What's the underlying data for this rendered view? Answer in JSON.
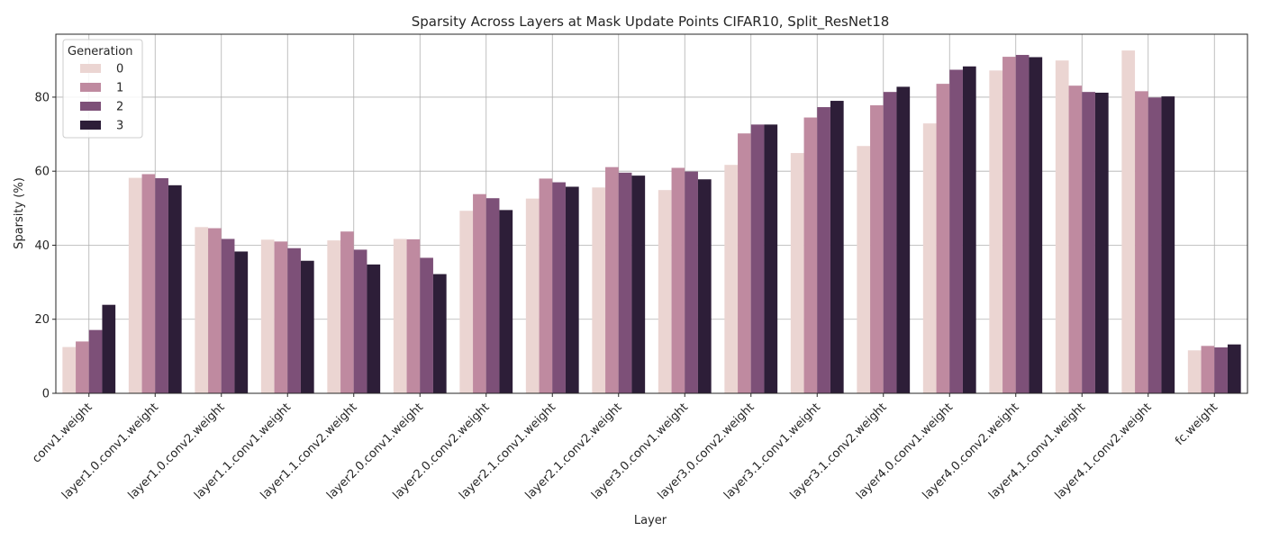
{
  "chart_data": {
    "type": "bar",
    "title": "Sparsity Across Layers at Mask Update Points CIFAR10, Split_ResNet18",
    "xlabel": "Layer",
    "ylabel": "Sparsity (%)",
    "ylim": [
      0,
      97
    ],
    "yticks": [
      "0",
      "20",
      "40",
      "60",
      "80"
    ],
    "grid": true,
    "legend": {
      "title": "Generation",
      "placement": "top-left"
    },
    "categories": [
      "conv1.weight",
      "layer1.0.conv1.weight",
      "layer1.0.conv2.weight",
      "layer1.1.conv1.weight",
      "layer1.1.conv2.weight",
      "layer2.0.conv1.weight",
      "layer2.0.conv2.weight",
      "layer2.1.conv1.weight",
      "layer2.1.conv2.weight",
      "layer3.0.conv1.weight",
      "layer3.0.conv2.weight",
      "layer3.1.conv1.weight",
      "layer3.1.conv2.weight",
      "layer4.0.conv1.weight",
      "layer4.0.conv2.weight",
      "layer4.1.conv1.weight",
      "layer4.1.conv2.weight",
      "fc.weight"
    ],
    "series": [
      {
        "name": "0",
        "color": "#ebd5d2",
        "values": [
          12.5,
          58.2,
          44.9,
          41.5,
          41.3,
          41.7,
          49.3,
          52.6,
          55.6,
          54.9,
          61.7,
          64.9,
          66.8,
          72.9,
          87.2,
          89.9,
          92.6,
          11.6
        ]
      },
      {
        "name": "1",
        "color": "#bf8aa0",
        "values": [
          14.0,
          59.2,
          44.6,
          41.0,
          43.7,
          41.6,
          53.8,
          58.0,
          61.1,
          60.9,
          70.2,
          74.5,
          77.8,
          83.6,
          90.9,
          83.1,
          81.6,
          12.8
        ]
      },
      {
        "name": "2",
        "color": "#7d5078",
        "values": [
          17.1,
          58.1,
          41.7,
          39.2,
          38.8,
          36.6,
          52.7,
          57.0,
          59.6,
          59.9,
          72.6,
          77.3,
          81.4,
          87.4,
          91.4,
          81.4,
          79.9,
          12.4
        ]
      },
      {
        "name": "3",
        "color": "#2d1e38",
        "values": [
          23.9,
          56.2,
          38.3,
          35.8,
          34.8,
          32.2,
          49.5,
          55.8,
          58.8,
          57.8,
          72.6,
          79.0,
          82.8,
          88.3,
          90.8,
          81.2,
          80.2,
          13.2
        ]
      }
    ]
  }
}
